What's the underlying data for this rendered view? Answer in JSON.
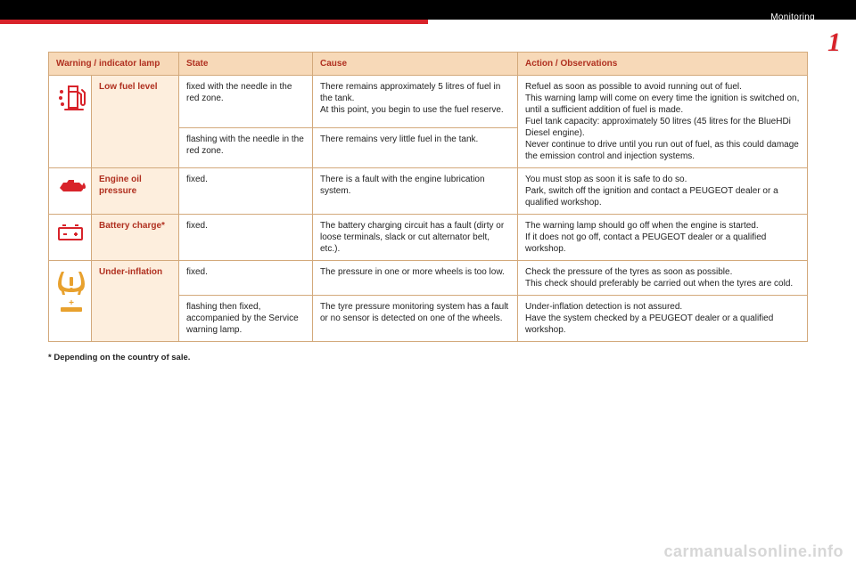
{
  "header": {
    "section_title": "Monitoring",
    "chapter_number": "1"
  },
  "table": {
    "columns": [
      "Warning / indicator lamp",
      "State",
      "Cause",
      "Action / Observations"
    ],
    "rows": [
      {
        "icon": "low-fuel",
        "name": "Low fuel level",
        "sub": [
          {
            "state": "fixed with the needle in the red zone.",
            "cause": "There remains approximately 5 litres of fuel in the tank.\nAt this point, you begin to use the fuel reserve."
          },
          {
            "state": "flashing with the needle in the red zone.",
            "cause": "There remains very little fuel in the tank."
          }
        ],
        "action": "Refuel as soon as possible to avoid running out of fuel.\nThis warning lamp will come on every time the ignition is switched on, until a sufficient addition of fuel is made.\nFuel tank capacity: approximately 50 litres (45 litres for the BlueHDi Diesel engine).\nNever continue to drive until you run out of fuel, as this could damage the emission control and injection systems."
      },
      {
        "icon": "oil-pressure",
        "name": "Engine oil pressure",
        "state": "fixed.",
        "cause": "There is a fault with the engine lubrication system.",
        "action": "You must stop as soon it is safe to do so.\nPark, switch off the ignition and contact a PEUGEOT dealer or a qualified workshop."
      },
      {
        "icon": "battery",
        "name": "Battery charge*",
        "state": "fixed.",
        "cause": "The battery charging circuit has a fault (dirty or loose terminals, slack or cut alternator belt, etc.).",
        "action": "The warning lamp should go off when the engine is started.\nIf it does not go off, contact a PEUGEOT dealer or a qualified workshop."
      },
      {
        "icon": "tyre",
        "name": "Under-inflation",
        "sub": [
          {
            "state": "fixed.",
            "cause": "The pressure in one or more wheels is too low.",
            "action": "Check the pressure of the tyres as soon as possible.\nThis check should preferably be carried out when the tyres are cold."
          },
          {
            "state": "flashing then fixed, accompanied by the Service warning lamp.",
            "cause": "The tyre pressure monitoring system has a fault or no sensor is detected on one of the wheels.",
            "action": "Under-inflation detection is not assured.\nHave the system checked by a PEUGEOT dealer or a qualified workshop."
          }
        ]
      }
    ]
  },
  "footnote": "* Depending on the country of sale.",
  "watermark": "carmanualsonline.info",
  "colors": {
    "accent_red": "#d8232a",
    "header_bg": "#f7d9b8",
    "header_text": "#b03020",
    "cell_border": "#d3a97b",
    "name_bg": "#fdeedd",
    "tyre_icon": "#e8a12e"
  }
}
